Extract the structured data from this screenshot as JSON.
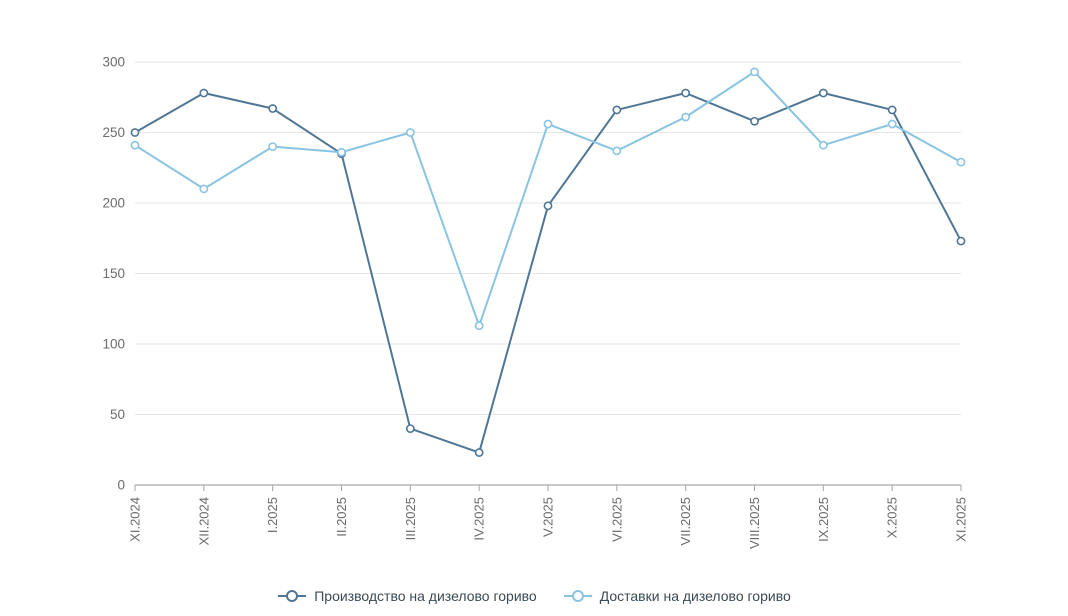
{
  "chart_data": {
    "type": "line",
    "categories": [
      "XI.2024",
      "XII.2024",
      "I.2025",
      "II.2025",
      "III.2025",
      "IV.2025",
      "V.2025",
      "VI.2025",
      "VII.2025",
      "VIII.2025",
      "IX.2025",
      "X.2025",
      "XI.2025"
    ],
    "series": [
      {
        "name": "Производство на дизелово гориво",
        "color": "#4f7795",
        "values": [
          250,
          278,
          267,
          235,
          40,
          23,
          198,
          266,
          278,
          258,
          278,
          266,
          173
        ]
      },
      {
        "name": "Доставки на дизелово гориво",
        "color": "#89c4e1",
        "values": [
          241,
          210,
          240,
          236,
          250,
          113,
          256,
          237,
          261,
          293,
          241,
          256,
          229
        ]
      }
    ],
    "title": "",
    "xlabel": "",
    "ylabel": "",
    "ylim": [
      0,
      300
    ],
    "yticks": [
      0,
      50,
      100,
      150,
      200,
      250,
      300
    ],
    "grid": true,
    "legend_position": "bottom"
  },
  "colors": {
    "grid_line": "#e6e6e6",
    "axis_line": "#a6a6a6",
    "tick_label": "#6b6b6b",
    "marker_fill": "#ffffff",
    "legend_text": "#3b4a54"
  }
}
